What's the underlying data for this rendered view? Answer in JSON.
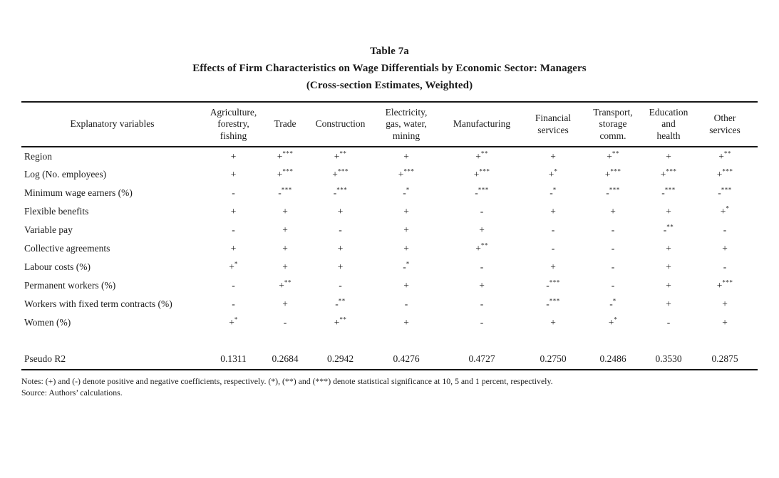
{
  "page": {
    "background": "#ffffff",
    "text_color": "#1b1b1b",
    "rule_color": "#171717"
  },
  "title": {
    "line1": "Table 7a",
    "line2": "Effects of Firm Characteristics on Wage Differentials by Economic Sector: Managers",
    "line3": "(Cross-section Estimates, Weighted)"
  },
  "table": {
    "corner_header": "Explanatory variables",
    "column_headers": [
      "Agriculture,\nforestry,\nfishing",
      "Trade",
      "Construction",
      "Electricity,\ngas, water,\nmining",
      "Manufacturing",
      "Financial\nservices",
      "Transport,\nstorage\ncomm.",
      "Education\nand\nhealth",
      "Other\nservices"
    ],
    "rows": [
      {
        "label": "Region",
        "cells": [
          "+",
          "+***",
          "+**",
          "+",
          "+**",
          "+",
          "+**",
          "+",
          "+**"
        ]
      },
      {
        "label": "Log (No. employees)",
        "cells": [
          "+",
          "+***",
          "+***",
          "+***",
          "+***",
          "+*",
          "+***",
          "+***",
          "+***"
        ]
      },
      {
        "label": "Minimum wage earners (%)",
        "cells": [
          "-",
          "-***",
          "-***",
          "-*",
          "-***",
          "-*",
          "-***",
          "-***",
          "-***"
        ]
      },
      {
        "label": "Flexible benefits",
        "cells": [
          "+",
          "+",
          "+",
          "+",
          "-",
          "+",
          "+",
          "+",
          "+*"
        ]
      },
      {
        "label": "Variable pay",
        "cells": [
          "-",
          "+",
          "-",
          "+",
          "+",
          "-",
          "-",
          "-**",
          "-"
        ]
      },
      {
        "label": "Collective agreements",
        "cells": [
          "+",
          "+",
          "+",
          "+",
          "+**",
          "-",
          "-",
          "+",
          "+"
        ]
      },
      {
        "label": "Labour costs (%)",
        "cells": [
          "+*",
          "+",
          "+",
          "-*",
          "-",
          "+",
          "-",
          "+",
          "-"
        ]
      },
      {
        "label": "Permanent workers (%)",
        "cells": [
          "-",
          "+**",
          "-",
          "+",
          "+",
          "-***",
          "-",
          "+",
          "+***"
        ]
      },
      {
        "label": "Workers with fixed term contracts (%)",
        "cells": [
          "-",
          "+",
          "-**",
          "-",
          "-",
          "-***",
          "-*",
          "+",
          "+"
        ]
      },
      {
        "label": "Women (%)",
        "cells": [
          "+*",
          "-",
          "+**",
          "+",
          "-",
          "+",
          "+*",
          "-",
          "+"
        ]
      }
    ],
    "summary_row": {
      "label": "Pseudo R2",
      "values": [
        "0.1311",
        "0.2684",
        "0.2942",
        "0.4276",
        "0.4727",
        "0.2750",
        "0.2486",
        "0.3530",
        "0.2875"
      ]
    }
  },
  "footer": {
    "notes": "Notes: (+) and (-) denote positive and negative coefficients, respectively. (*), (**) and (***) denote statistical significance at 10, 5 and 1 percent, respectively.",
    "source": "Source: Authors’ calculations."
  }
}
